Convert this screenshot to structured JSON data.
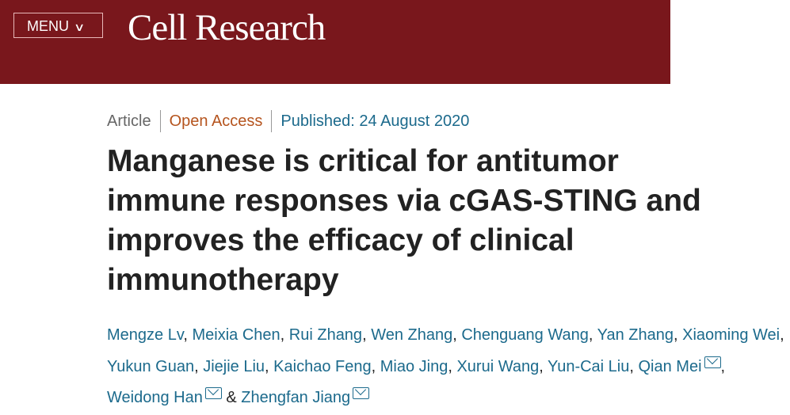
{
  "header": {
    "menu_label": "MENU",
    "menu_icon": "chevron-down-icon",
    "journal": "Cell Research",
    "background_color": "#79171c"
  },
  "meta": {
    "type": "Article",
    "access": "Open Access",
    "published": "Published: 24 August 2020"
  },
  "title": "Manganese is critical for antitumor immune responses via cGAS-STING and improves the efficacy of clinical immunotherapy",
  "authors": [
    {
      "name": "Mengze Lv"
    },
    {
      "name": "Meixia Chen"
    },
    {
      "name": "Rui Zhang"
    },
    {
      "name": "Wen Zhang"
    },
    {
      "name": "Chenguang Wang"
    },
    {
      "name": "Yan Zhang"
    },
    {
      "name": "Xiaoming Wei"
    },
    {
      "name": "Yukun Guan"
    },
    {
      "name": "Jiejie Liu"
    },
    {
      "name": "Kaichao Feng"
    },
    {
      "name": "Miao Jing"
    },
    {
      "name": "Xurui Wang"
    },
    {
      "name": "Yun-Cai Liu"
    },
    {
      "name": "Qian Mei",
      "email_icon": true
    },
    {
      "name": "Weidong Han",
      "email_icon": true
    },
    {
      "name": "Zhengfan Jiang",
      "email_icon": true
    }
  ],
  "authors_conjunction": "&"
}
